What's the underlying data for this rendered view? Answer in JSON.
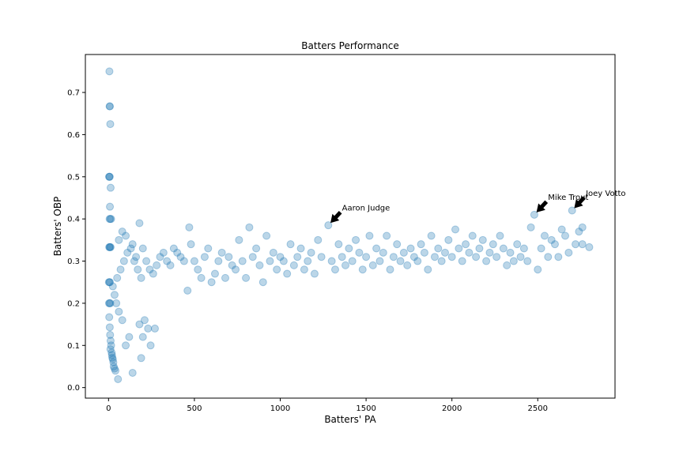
{
  "chart_data": {
    "type": "scatter",
    "title": "Batters Performance",
    "xlabel": "Batters' PA",
    "ylabel": "Batters' OBP",
    "xlim": [
      -135,
      2950
    ],
    "ylim": [
      -0.025,
      0.79
    ],
    "xticks": [
      0,
      500,
      1000,
      1500,
      2000,
      2500
    ],
    "yticks": [
      0.0,
      0.1,
      0.2,
      0.3,
      0.4,
      0.5,
      0.6,
      0.7
    ],
    "ytick_labels": [
      "0.0",
      "0.1",
      "0.2",
      "0.3",
      "0.4",
      "0.5",
      "0.6",
      "0.7"
    ],
    "point_color": "#1f77b4",
    "points": [
      [
        5,
        0.75
      ],
      [
        8,
        0.667
      ],
      [
        6,
        0.667
      ],
      [
        10,
        0.625
      ],
      [
        3,
        0.5
      ],
      [
        5,
        0.5
      ],
      [
        7,
        0.5
      ],
      [
        12,
        0.474
      ],
      [
        8,
        0.429
      ],
      [
        10,
        0.4
      ],
      [
        6,
        0.4
      ],
      [
        15,
        0.4
      ],
      [
        4,
        0.333
      ],
      [
        6,
        0.333
      ],
      [
        9,
        0.333
      ],
      [
        12,
        0.333
      ],
      [
        2,
        0.25
      ],
      [
        5,
        0.25
      ],
      [
        8,
        0.25
      ],
      [
        3,
        0.2
      ],
      [
        6,
        0.2
      ],
      [
        10,
        0.2
      ],
      [
        4,
        0.167
      ],
      [
        7,
        0.143
      ],
      [
        9,
        0.125
      ],
      [
        12,
        0.111
      ],
      [
        15,
        0.1
      ],
      [
        11,
        0.091
      ],
      [
        18,
        0.083
      ],
      [
        20,
        0.077
      ],
      [
        22,
        0.071
      ],
      [
        25,
        0.067
      ],
      [
        28,
        0.06
      ],
      [
        30,
        0.05
      ],
      [
        35,
        0.045
      ],
      [
        40,
        0.04
      ],
      [
        55,
        0.02
      ],
      [
        140,
        0.035
      ],
      [
        190,
        0.07
      ],
      [
        245,
        0.1
      ],
      [
        200,
        0.12
      ],
      [
        230,
        0.14
      ],
      [
        270,
        0.14
      ],
      [
        180,
        0.15
      ],
      [
        210,
        0.16
      ],
      [
        100,
        0.1
      ],
      [
        120,
        0.12
      ],
      [
        80,
        0.16
      ],
      [
        60,
        0.18
      ],
      [
        45,
        0.2
      ],
      [
        35,
        0.22
      ],
      [
        25,
        0.24
      ],
      [
        50,
        0.26
      ],
      [
        70,
        0.28
      ],
      [
        90,
        0.3
      ],
      [
        110,
        0.32
      ],
      [
        130,
        0.33
      ],
      [
        150,
        0.3
      ],
      [
        170,
        0.28
      ],
      [
        190,
        0.26
      ],
      [
        60,
        0.35
      ],
      [
        80,
        0.37
      ],
      [
        100,
        0.36
      ],
      [
        180,
        0.39
      ],
      [
        140,
        0.34
      ],
      [
        160,
        0.31
      ],
      [
        200,
        0.33
      ],
      [
        220,
        0.3
      ],
      [
        240,
        0.28
      ],
      [
        260,
        0.27
      ],
      [
        280,
        0.29
      ],
      [
        300,
        0.31
      ],
      [
        320,
        0.32
      ],
      [
        340,
        0.3
      ],
      [
        360,
        0.29
      ],
      [
        380,
        0.33
      ],
      [
        400,
        0.32
      ],
      [
        420,
        0.31
      ],
      [
        440,
        0.3
      ],
      [
        460,
        0.23
      ],
      [
        470,
        0.38
      ],
      [
        480,
        0.34
      ],
      [
        500,
        0.3
      ],
      [
        520,
        0.28
      ],
      [
        540,
        0.26
      ],
      [
        560,
        0.31
      ],
      [
        580,
        0.33
      ],
      [
        600,
        0.25
      ],
      [
        620,
        0.27
      ],
      [
        640,
        0.3
      ],
      [
        660,
        0.32
      ],
      [
        680,
        0.26
      ],
      [
        700,
        0.31
      ],
      [
        720,
        0.29
      ],
      [
        740,
        0.28
      ],
      [
        760,
        0.35
      ],
      [
        780,
        0.3
      ],
      [
        800,
        0.26
      ],
      [
        820,
        0.38
      ],
      [
        840,
        0.31
      ],
      [
        860,
        0.33
      ],
      [
        880,
        0.29
      ],
      [
        900,
        0.25
      ],
      [
        920,
        0.36
      ],
      [
        940,
        0.3
      ],
      [
        960,
        0.32
      ],
      [
        980,
        0.28
      ],
      [
        1000,
        0.31
      ],
      [
        1020,
        0.3
      ],
      [
        1040,
        0.27
      ],
      [
        1060,
        0.34
      ],
      [
        1080,
        0.29
      ],
      [
        1100,
        0.31
      ],
      [
        1120,
        0.33
      ],
      [
        1140,
        0.28
      ],
      [
        1160,
        0.3
      ],
      [
        1180,
        0.32
      ],
      [
        1200,
        0.27
      ],
      [
        1220,
        0.35
      ],
      [
        1240,
        0.31
      ],
      [
        1280,
        0.385
      ],
      [
        1300,
        0.3
      ],
      [
        1320,
        0.28
      ],
      [
        1340,
        0.34
      ],
      [
        1360,
        0.31
      ],
      [
        1380,
        0.29
      ],
      [
        1400,
        0.33
      ],
      [
        1420,
        0.3
      ],
      [
        1440,
        0.35
      ],
      [
        1460,
        0.32
      ],
      [
        1480,
        0.28
      ],
      [
        1500,
        0.31
      ],
      [
        1520,
        0.36
      ],
      [
        1540,
        0.29
      ],
      [
        1560,
        0.33
      ],
      [
        1580,
        0.3
      ],
      [
        1600,
        0.32
      ],
      [
        1620,
        0.36
      ],
      [
        1640,
        0.28
      ],
      [
        1660,
        0.31
      ],
      [
        1680,
        0.34
      ],
      [
        1700,
        0.3
      ],
      [
        1720,
        0.32
      ],
      [
        1740,
        0.29
      ],
      [
        1760,
        0.33
      ],
      [
        1780,
        0.31
      ],
      [
        1800,
        0.3
      ],
      [
        1820,
        0.34
      ],
      [
        1840,
        0.32
      ],
      [
        1860,
        0.28
      ],
      [
        1880,
        0.36
      ],
      [
        1900,
        0.31
      ],
      [
        1920,
        0.33
      ],
      [
        1940,
        0.3
      ],
      [
        1960,
        0.32
      ],
      [
        1980,
        0.35
      ],
      [
        2000,
        0.31
      ],
      [
        2020,
        0.375
      ],
      [
        2040,
        0.33
      ],
      [
        2060,
        0.3
      ],
      [
        2080,
        0.34
      ],
      [
        2100,
        0.32
      ],
      [
        2120,
        0.36
      ],
      [
        2140,
        0.31
      ],
      [
        2160,
        0.33
      ],
      [
        2180,
        0.35
      ],
      [
        2200,
        0.3
      ],
      [
        2220,
        0.32
      ],
      [
        2240,
        0.34
      ],
      [
        2260,
        0.31
      ],
      [
        2280,
        0.36
      ],
      [
        2300,
        0.33
      ],
      [
        2320,
        0.29
      ],
      [
        2340,
        0.32
      ],
      [
        2360,
        0.3
      ],
      [
        2380,
        0.34
      ],
      [
        2400,
        0.31
      ],
      [
        2420,
        0.33
      ],
      [
        2440,
        0.3
      ],
      [
        2460,
        0.38
      ],
      [
        2480,
        0.41
      ],
      [
        2500,
        0.28
      ],
      [
        2520,
        0.33
      ],
      [
        2540,
        0.36
      ],
      [
        2560,
        0.31
      ],
      [
        2580,
        0.35
      ],
      [
        2620,
        0.31
      ],
      [
        2660,
        0.36
      ],
      [
        2700,
        0.42
      ],
      [
        2720,
        0.34
      ],
      [
        2740,
        0.37
      ],
      [
        2760,
        0.38
      ],
      [
        2800,
        0.333
      ],
      [
        2680,
        0.32
      ],
      [
        2760,
        0.34
      ],
      [
        2640,
        0.375
      ],
      [
        2600,
        0.34
      ]
    ],
    "annotations": [
      {
        "text": "Aaron Judge",
        "x": 1280,
        "y": 0.385,
        "text_x": 1360,
        "text_y": 0.42
      },
      {
        "text": "Mike Trout",
        "x": 2480,
        "y": 0.41,
        "text_x": 2560,
        "text_y": 0.445
      },
      {
        "text": "Joey Votto",
        "x": 2700,
        "y": 0.42,
        "text_x": 2780,
        "text_y": 0.455
      }
    ]
  }
}
